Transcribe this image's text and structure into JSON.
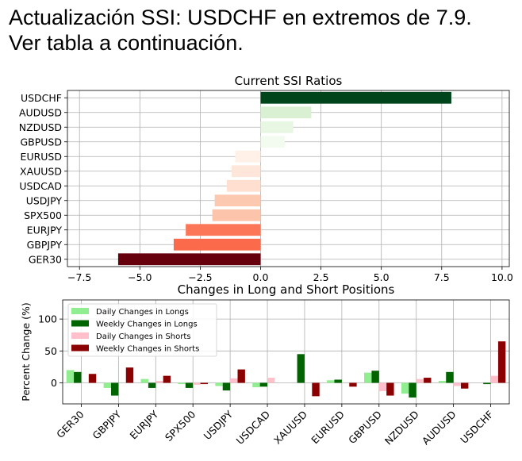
{
  "headline": {
    "line1": "Actualización SSI: USDCHF en extremos de 7.9.",
    "line2": "Ver tabla a continuación."
  },
  "chart_data": [
    {
      "type": "bar",
      "orientation": "horizontal",
      "title": "Current SSI Ratios",
      "categories": [
        "USDCHF",
        "AUDUSD",
        "NZDUSD",
        "GBPUSD",
        "EURUSD",
        "XAUUSD",
        "USDCAD",
        "USDJPY",
        "SPX500",
        "EURJPY",
        "GBPJPY",
        "GER30"
      ],
      "values": [
        7.9,
        2.1,
        1.35,
        1.0,
        -1.05,
        -1.2,
        -1.4,
        -1.9,
        -2.0,
        -3.1,
        -3.6,
        -5.9
      ],
      "colors": [
        "#00441b",
        "#d9f0d3",
        "#e8f6e4",
        "#f3faf0",
        "#fff0e8",
        "#fee6da",
        "#fedfd0",
        "#fcc9b0",
        "#fcc4ab",
        "#fb7757",
        "#fb6a4a",
        "#67000d"
      ],
      "xlim": [
        -8,
        10.3
      ],
      "xticks": [
        "−7.5",
        "−5.0",
        "−2.5",
        "0.0",
        "2.5",
        "5.0",
        "7.5",
        "10.0"
      ],
      "grid": true
    },
    {
      "type": "bar",
      "title": "Changes in Long and Short Positions",
      "ylabel": "Percent Change (%)",
      "categories": [
        "GER30",
        "GBPJPY",
        "EURJPY",
        "SPX500",
        "USDJPY",
        "USDCAD",
        "XAUUSD",
        "EURUSD",
        "GBPUSD",
        "NZDUSD",
        "AUDUSD",
        "USDCHF"
      ],
      "ylim": [
        -33,
        130
      ],
      "yticks": [
        "0",
        "50",
        "100"
      ],
      "grid": true,
      "legend_position": "upper-left",
      "series": [
        {
          "name": "Daily Changes in Longs",
          "color": "#90ee90",
          "values": [
            20,
            -8,
            6,
            -2,
            -5,
            -7,
            0,
            4,
            16,
            -17,
            3,
            0
          ]
        },
        {
          "name": "Weekly Changes in Longs",
          "color": "#006400",
          "values": [
            17,
            -20,
            -8,
            -8,
            -12,
            -6,
            45,
            5,
            19,
            -23,
            17,
            -2
          ]
        },
        {
          "name": "Daily Changes in Shorts",
          "color": "#ffc0cb",
          "values": [
            0,
            0,
            3,
            -3,
            7,
            8,
            0,
            0,
            -13,
            6,
            -5,
            11
          ]
        },
        {
          "name": "Weekly Changes in Shorts",
          "color": "#8b0000",
          "values": [
            14,
            24,
            11,
            -2,
            21,
            0,
            -21,
            -6,
            -20,
            8,
            -9,
            65
          ]
        }
      ]
    }
  ]
}
